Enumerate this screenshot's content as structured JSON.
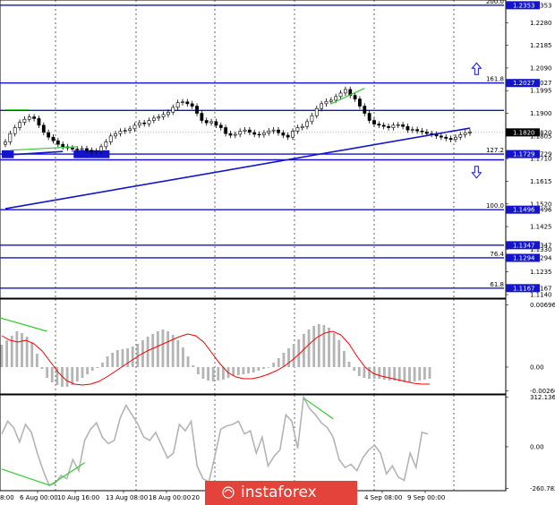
{
  "chart_data": [
    {
      "type": "candlestick",
      "instrument_pane": "price",
      "y_axis_ticks": [
        "1.2353",
        "1.2280",
        "1.2185",
        "1.2090",
        "1.2027",
        "1.1995",
        "1.1900",
        "1.1820",
        "1.1805",
        "1.1729",
        "1.1710",
        "1.1615",
        "1.1520",
        "1.1496",
        "1.1425",
        "1.1347",
        "1.1330",
        "1.1294",
        "1.1235",
        "1.1167",
        "1.1140"
      ],
      "ylim": [
        1.1125,
        1.2375
      ],
      "horizontal_levels": [
        {
          "label": "200.0",
          "value": 1.2353,
          "tag": "1.2353"
        },
        {
          "label": "161.8",
          "value": 1.2027,
          "tag": "1.2027"
        },
        {
          "label": "",
          "value": 1.1912,
          "tag": ""
        },
        {
          "label": "127.2",
          "value": 1.1729,
          "tag": "1.1729"
        },
        {
          "label": "",
          "value": 1.1705,
          "tag": ""
        },
        {
          "label": "100.0",
          "value": 1.1496,
          "tag": "1.1496"
        },
        {
          "label": "",
          "value": 1.1347,
          "tag": "1.1347"
        },
        {
          "label": "76.4",
          "value": 1.1294,
          "tag": "1.1294"
        },
        {
          "label": "61.8",
          "value": 1.1167,
          "tag": "1.1167"
        }
      ],
      "current_price": "1.1820",
      "close_path": [
        1.178,
        1.1815,
        1.184,
        1.1862,
        1.1875,
        1.1885,
        1.1878,
        1.185,
        1.182,
        1.18,
        1.1785,
        1.177,
        1.176,
        1.1755,
        1.175,
        1.1748,
        1.1752,
        1.1745,
        1.174,
        1.1742,
        1.176,
        1.178,
        1.1805,
        1.1815,
        1.1825,
        1.1828,
        1.1835,
        1.185,
        1.186,
        1.1856,
        1.187,
        1.188,
        1.1885,
        1.1895,
        1.1905,
        1.1925,
        1.1945,
        1.1948,
        1.194,
        1.193,
        1.19,
        1.187,
        1.186,
        1.1865,
        1.185,
        1.184,
        1.1815,
        1.1808,
        1.1812,
        1.1825,
        1.183,
        1.182,
        1.1812,
        1.181,
        1.1818,
        1.1826,
        1.183,
        1.1818,
        1.1808,
        1.18,
        1.1825,
        1.184,
        1.1845,
        1.1865,
        1.189,
        1.192,
        1.194,
        1.195,
        1.1955,
        1.197,
        1.1985,
        1.2,
        1.1975,
        1.196,
        1.193,
        1.19,
        1.187,
        1.1855,
        1.185,
        1.1845,
        1.184,
        1.185,
        1.1852,
        1.1845,
        1.183,
        1.1832,
        1.1826,
        1.1822,
        1.1815,
        1.1812,
        1.1805,
        1.18,
        1.1795,
        1.179,
        1.18,
        1.181,
        1.1818,
        1.1822
      ],
      "trend_lines": [
        {
          "from": [
            0,
            1.15
          ],
          "to": [
            97,
            1.1838
          ]
        },
        {
          "from": [
            0,
            1.1725
          ],
          "to": [
            12,
            1.174
          ]
        }
      ],
      "zones": [
        {
          "from": 0,
          "to": 1,
          "top": 1.1745,
          "bottom": 1.1712
        },
        {
          "from": 15,
          "to": 21,
          "top": 1.1745,
          "bottom": 1.1712
        }
      ],
      "divergence_lines": [
        {
          "from": [
            1,
            1.1745
          ],
          "to": [
            15,
            1.176
          ]
        },
        {
          "from": [
            68,
            1.194
          ],
          "to": [
            75,
            1.2005
          ]
        },
        {
          "from": [
            0,
            1.1915
          ],
          "to": [
            5,
            1.1915
          ]
        }
      ],
      "arrows": [
        {
          "direction": "up",
          "x": 98,
          "value": 1.2085
        },
        {
          "direction": "down",
          "x": 98,
          "value": 1.1655
        }
      ]
    },
    {
      "type": "histogram",
      "indicator_pane": "oscillator",
      "y_axis_ticks": [
        "0.00696",
        "0.00",
        "-0.00266"
      ],
      "ylim": [
        -0.003,
        0.0076
      ],
      "values": [
        0.0025,
        0.003,
        0.0035,
        0.004,
        0.0038,
        0.0034,
        0.0028,
        0.0015,
        -0.0002,
        -0.0012,
        -0.0017,
        -0.002,
        -0.0022,
        -0.0022,
        -0.002,
        -0.0016,
        -0.0012,
        -0.0008,
        -0.0004,
        -0.0001,
        0.0005,
        0.0012,
        0.0016,
        0.0019,
        0.002,
        0.0021,
        0.0023,
        0.0026,
        0.003,
        0.0034,
        0.0037,
        0.004,
        0.0042,
        0.004,
        0.0036,
        0.003,
        0.0022,
        0.0012,
        0.0002,
        -0.0008,
        -0.0013,
        -0.0015,
        -0.0016,
        -0.0015,
        -0.0014,
        -0.0012,
        -0.001,
        -0.0009,
        -0.0008,
        -0.0007,
        -0.0006,
        -0.0004,
        -0.0002,
        0.0,
        0.0005,
        0.001,
        0.0016,
        0.0021,
        0.0026,
        0.0031,
        0.0037,
        0.0042,
        0.0046,
        0.0048,
        0.0047,
        0.0044,
        0.0038,
        0.003,
        0.0018,
        0.0006,
        -0.0004,
        -0.001,
        -0.0012,
        -0.0013,
        -0.0013,
        -0.0013,
        -0.0014,
        -0.0015,
        -0.0015,
        -0.0016,
        -0.0017,
        -0.0017,
        -0.0016,
        -0.0015,
        -0.0014,
        -0.0013
      ],
      "signal": [
        0.0035,
        0.003,
        0.0028,
        0.003,
        0.0026,
        0.0018,
        0.0006,
        -0.0006,
        -0.0015,
        -0.0019,
        -0.002,
        -0.0019,
        -0.0016,
        -0.0011,
        -0.0005,
        0.0001,
        0.0007,
        0.0013,
        0.0018,
        0.0022,
        0.0026,
        0.003,
        0.0034,
        0.0037,
        0.0035,
        0.0028,
        0.0016,
        0.0004,
        -0.0006,
        -0.0011,
        -0.0013,
        -0.0013,
        -0.0011,
        -0.0008,
        -0.0004,
        0.0001,
        0.0008,
        0.0016,
        0.0025,
        0.0033,
        0.0038,
        0.004,
        0.0036,
        0.0026,
        0.0012,
        0.0,
        -0.0007,
        -0.001,
        -0.0012,
        -0.0014,
        -0.0016,
        -0.0018,
        -0.0019,
        -0.0019
      ]
    },
    {
      "type": "line",
      "indicator_pane": "oscillator",
      "y_axis_ticks": [
        "312.1363",
        "0.00",
        "-260.7820"
      ],
      "ylim": [
        -275,
        325
      ],
      "values": [
        80,
        160,
        120,
        30,
        140,
        90,
        -40,
        -150,
        -240,
        -230,
        -180,
        -200,
        -80,
        -150,
        40,
        110,
        150,
        60,
        20,
        40,
        180,
        260,
        200,
        140,
        60,
        40,
        90,
        10,
        -70,
        -40,
        140,
        100,
        160,
        -120,
        -200,
        -220,
        -60,
        110,
        130,
        140,
        160,
        80,
        100,
        -40,
        60,
        -120,
        -60,
        -20,
        200,
        160,
        -10,
        310,
        240,
        200,
        150,
        120,
        60,
        -80,
        -130,
        -110,
        -150,
        -70,
        -20,
        10,
        -40,
        -170,
        -120,
        -190,
        -210,
        -40,
        -130,
        90,
        80
      ],
      "divergence_lines": [
        {
          "from": [
            0,
            -140
          ],
          "to": [
            8,
            -240
          ]
        },
        {
          "from": [
            8,
            -245
          ],
          "to": [
            14,
            -100
          ]
        },
        {
          "from": [
            51,
            305
          ],
          "to": [
            56,
            175
          ]
        }
      ]
    }
  ],
  "x_axis_ticks": [
    "6 Aug 00:00",
    "10 Aug 16:00",
    "13 Aug 08:00",
    "18 Aug 00:00",
    "20",
    "4 Sep 08:00",
    "9 Sep 00:00"
  ],
  "x_axis_edge_label": "8:00",
  "watermark": "instaforex",
  "colors": {
    "grid": "#000000",
    "level": "#1414cc",
    "trend": "#1414cc",
    "zone": "#1414cc",
    "divergence": "#32cd32",
    "signal": "#ff0000",
    "histogram": "#b4b4b4",
    "oscillator_line": "#b4b4b4",
    "candle": "#000000",
    "logo_bg": "#e3433a"
  }
}
